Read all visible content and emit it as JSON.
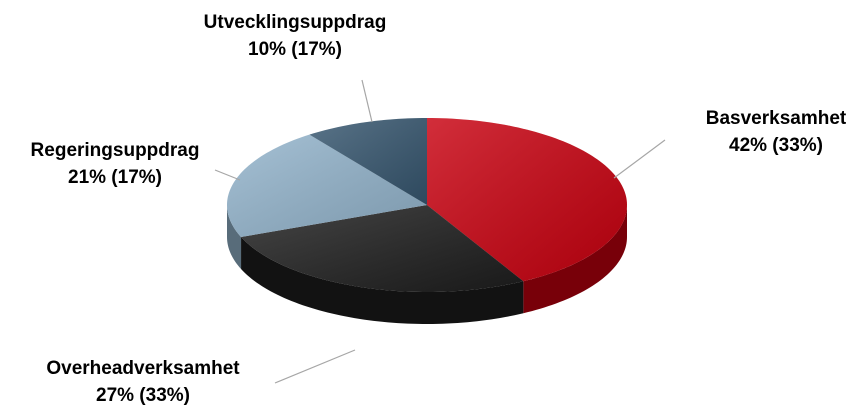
{
  "chart_data": {
    "type": "pie",
    "categories": [
      "Basverksamhet",
      "Overheadverksamhet",
      "Regeringsuppdrag",
      "Utvecklingsuppdrag"
    ],
    "values": [
      42,
      27,
      21,
      10
    ],
    "value_labels": [
      "42% (33%)",
      "27% (33%)",
      "21% (17%)",
      "10% (17%)"
    ],
    "colors": [
      "#c8000f",
      "#1e1e1e",
      "#93b4cc",
      "#36566f"
    ]
  }
}
